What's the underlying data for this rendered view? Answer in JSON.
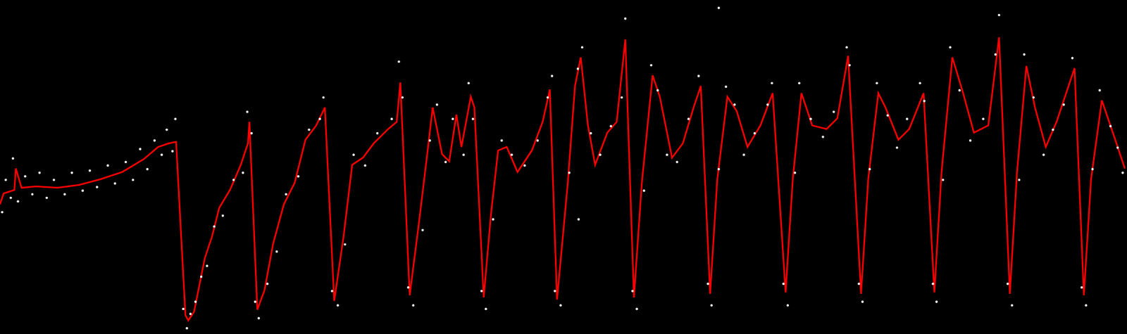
{
  "chart_data": {
    "type": "line",
    "xlim": [
      0,
      1568
    ],
    "ylim": [
      0,
      466
    ],
    "tick_labels": false,
    "grid": false,
    "series": [
      {
        "type": "scatter",
        "color": "#ffffff",
        "marker": "circle",
        "x": [
          3,
          8,
          15,
          18,
          25,
          35,
          45,
          55,
          65,
          75,
          90,
          100,
          115,
          125,
          135,
          150,
          160,
          175,
          185,
          195,
          205,
          215,
          225,
          232,
          240,
          244,
          255,
          260,
          265,
          272,
          280,
          288,
          298,
          310,
          325,
          338,
          344,
          350,
          355,
          360,
          372,
          385,
          398,
          415,
          430,
          445,
          450,
          462,
          470,
          480,
          492,
          508,
          525,
          545,
          555,
          560,
          568,
          575,
          588,
          598,
          608,
          620,
          630,
          645,
          652,
          658,
          670,
          676,
          686,
          698,
          712,
          730,
          748,
          762,
          768,
          772,
          780,
          792,
          804,
          810,
          822,
          835,
          850,
          865,
          870,
          880,
          886,
          896,
          906,
          915,
          928,
          942,
          958,
          972,
          985,
          990,
          1000,
          1010,
          1022,
          1035,
          1050,
          1068,
          1074,
          1090,
          1096,
          1106,
          1112,
          1128,
          1145,
          1160,
          1178,
          1182,
          1195,
          1200,
          1210,
          1220,
          1235,
          1248,
          1262,
          1280,
          1286,
          1298,
          1303,
          1312,
          1322,
          1335,
          1350,
          1368,
          1385,
          1390,
          1402,
          1408,
          1418,
          1425,
          1438,
          1452,
          1465,
          1480,
          1492,
          1505,
          1511,
          1520,
          1530,
          1545,
          1555,
          1562,
          805,
          1000
        ],
        "values": [
          170,
          215,
          190,
          245,
          185,
          220,
          195,
          225,
          190,
          215,
          195,
          225,
          200,
          228,
          205,
          235,
          210,
          240,
          215,
          258,
          230,
          270,
          250,
          285,
          255,
          300,
          35,
          8,
          28,
          45,
          80,
          95,
          150,
          165,
          215,
          225,
          310,
          280,
          45,
          22,
          70,
          115,
          195,
          220,
          285,
          300,
          330,
          60,
          40,
          125,
          250,
          235,
          280,
          300,
          380,
          330,
          65,
          40,
          145,
          270,
          320,
          240,
          300,
          250,
          350,
          300,
          60,
          35,
          160,
          270,
          250,
          235,
          270,
          330,
          360,
          60,
          40,
          225,
          370,
          400,
          280,
          250,
          290,
          330,
          440,
          60,
          35,
          200,
          375,
          340,
          250,
          240,
          300,
          360,
          70,
          40,
          230,
          345,
          320,
          250,
          280,
          320,
          350,
          70,
          40,
          225,
          350,
          300,
          275,
          310,
          400,
          375,
          70,
          45,
          230,
          350,
          305,
          260,
          300,
          350,
          325,
          70,
          45,
          215,
          400,
          340,
          270,
          300,
          390,
          445,
          70,
          40,
          215,
          390,
          330,
          250,
          285,
          320,
          385,
          65,
          40,
          230,
          340,
          290,
          260,
          225,
          160,
          455
        ]
      },
      {
        "type": "line",
        "color": "#ff0000",
        "line_style": "solid",
        "x": [
          0,
          5,
          20,
          22,
          30,
          50,
          80,
          110,
          140,
          170,
          200,
          220,
          235,
          245,
          258,
          262,
          270,
          278,
          285,
          295,
          305,
          320,
          335,
          345,
          347,
          358,
          368,
          380,
          395,
          410,
          425,
          440,
          452,
          465,
          478,
          490,
          505,
          520,
          540,
          552,
          557,
          570,
          583,
          595,
          602,
          615,
          625,
          635,
          642,
          655,
          660,
          673,
          683,
          693,
          705,
          720,
          740,
          755,
          765,
          775,
          790,
          800,
          808,
          818,
          828,
          845,
          858,
          870,
          882,
          893,
          908,
          918,
          935,
          950,
          965,
          975,
          988,
          998,
          1012,
          1025,
          1040,
          1058,
          1075,
          1093,
          1103,
          1115,
          1130,
          1150,
          1165,
          1180,
          1198,
          1208,
          1222,
          1232,
          1250,
          1265,
          1285,
          1300,
          1310,
          1325,
          1340,
          1355,
          1375,
          1390,
          1405,
          1415,
          1428,
          1440,
          1455,
          1470,
          1495,
          1508,
          1518,
          1533,
          1550,
          1565
        ],
        "values": [
          181,
          196,
          201,
          231,
          204,
          206,
          204,
          208,
          216,
          226,
          244,
          261,
          266,
          268,
          26,
          19,
          31,
          71,
          106,
          136,
          176,
          201,
          236,
          266,
          296,
          34,
          61,
          126,
          181,
          211,
          271,
          291,
          316,
          46,
          136,
          236,
          246,
          266,
          286,
          296,
          351,
          54,
          156,
          256,
          316,
          251,
          241,
          306,
          261,
          331,
          316,
          51,
          166,
          256,
          261,
          226,
          256,
          296,
          341,
          48,
          211,
          346,
          386,
          291,
          236,
          281,
          296,
          411,
          51,
          211,
          361,
          331,
          246,
          266,
          316,
          346,
          56,
          216,
          331,
          311,
          261,
          291,
          336,
          58,
          216,
          336,
          291,
          286,
          301,
          388,
          56,
          216,
          336,
          316,
          271,
          286,
          336,
          58,
          226,
          386,
          336,
          281,
          291,
          414,
          56,
          226,
          374,
          316,
          261,
          296,
          371,
          54,
          216,
          326,
          276,
          231
        ]
      }
    ]
  }
}
